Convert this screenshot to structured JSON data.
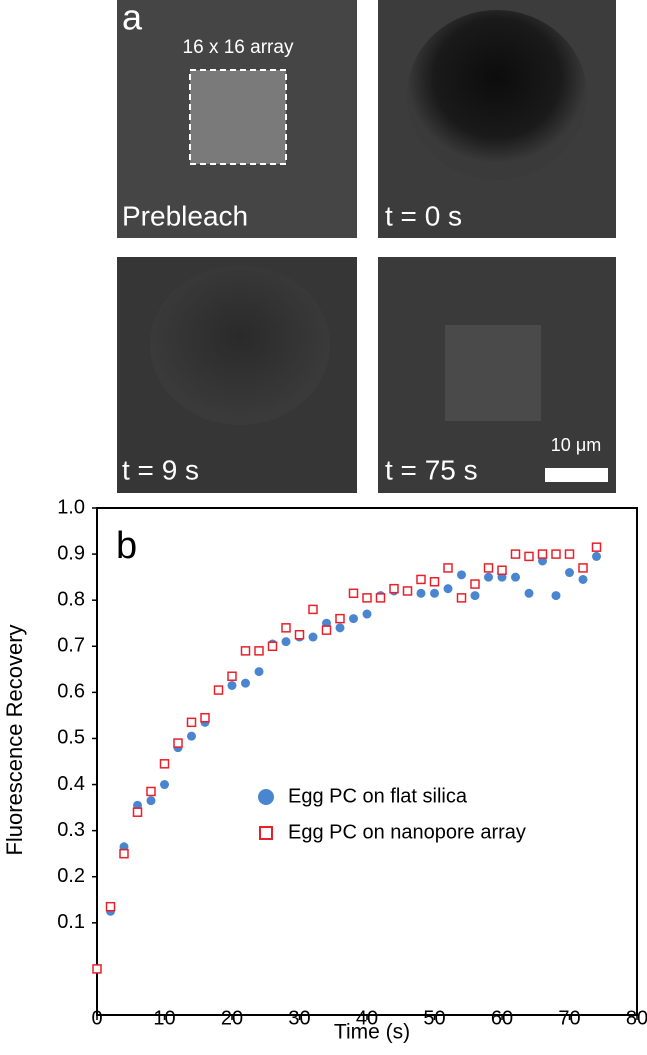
{
  "panel_a": {
    "label": "a",
    "array_label": "16 x 16 array",
    "scale_bar": "10 μm",
    "frames": [
      "Prebleach",
      "t = 0 s",
      "t = 9 s",
      "t = 75 s"
    ]
  },
  "chart_data": {
    "type": "scatter",
    "panel_label": "b",
    "x_label": "Time (s)",
    "y_label": "Fluorescence Recovery",
    "x": [
      0,
      2,
      4,
      6,
      8,
      10,
      12,
      14,
      16,
      18,
      20,
      22,
      24,
      26,
      28,
      30,
      32,
      34,
      36,
      38,
      40,
      42,
      44,
      46,
      48,
      50,
      52,
      54,
      56,
      58,
      60,
      62,
      64,
      66,
      68,
      70,
      72,
      74
    ],
    "series": [
      {
        "name": "Egg PC on flat silica",
        "color": "#4a86d0",
        "marker": "circle",
        "values": [
          0,
          0.125,
          0.265,
          0.355,
          0.365,
          0.4,
          0.48,
          0.505,
          0.535,
          0.605,
          0.615,
          0.62,
          0.645,
          0.705,
          0.71,
          0.72,
          0.72,
          0.75,
          0.74,
          0.76,
          0.77,
          0.81,
          0.82,
          0.82,
          0.815,
          0.815,
          0.825,
          0.855,
          0.81,
          0.85,
          0.85,
          0.85,
          0.815,
          0.885,
          0.81,
          0.86,
          0.845,
          0.895
        ]
      },
      {
        "name": "Egg PC on nanopore array",
        "color": "#e8202a",
        "marker": "square",
        "values": [
          0,
          0.135,
          0.25,
          0.34,
          0.385,
          0.445,
          0.49,
          0.535,
          0.545,
          0.605,
          0.635,
          0.69,
          0.69,
          0.7,
          0.74,
          0.725,
          0.78,
          0.735,
          0.76,
          0.815,
          0.805,
          0.805,
          0.825,
          0.82,
          0.845,
          0.84,
          0.87,
          0.805,
          0.835,
          0.87,
          0.865,
          0.9,
          0.895,
          0.9,
          0.9,
          0.9,
          0.87,
          0.915
        ]
      }
    ],
    "xlim": [
      0,
      80
    ],
    "xticks": [
      0,
      10,
      20,
      30,
      40,
      50,
      60,
      70,
      80
    ],
    "ylim": [
      -0.1,
      1.0
    ],
    "yticks": [
      0.1,
      0.2,
      0.3,
      0.4,
      0.5,
      0.6,
      0.7,
      0.8,
      0.9,
      {
        "value": 1,
        "label": "1.0"
      }
    ]
  }
}
